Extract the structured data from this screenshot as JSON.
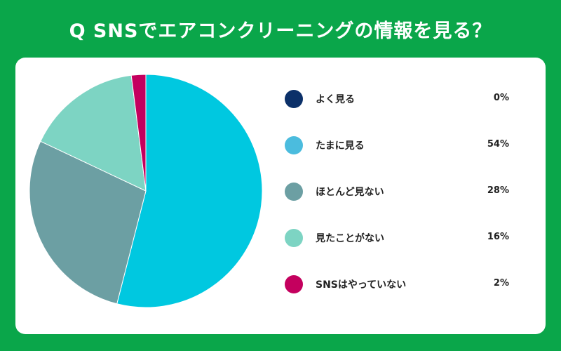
{
  "title": "Q SNSでエアコンクリーニングの情報を見る？",
  "chart_data": {
    "type": "pie",
    "categories": [
      "よく見る",
      "たまに見る",
      "ほとんど見ない",
      "見たことがない",
      "SNSはやっていない"
    ],
    "values": [
      0,
      54,
      28,
      16,
      2
    ],
    "value_labels": [
      "0%",
      "54%",
      "28%",
      "16%",
      "2%"
    ],
    "colors": [
      "#0b3069",
      "#4bbcde",
      "#6c9fa3",
      "#7dd4c3",
      "#c4005e"
    ],
    "slice_colors": [
      "#0b3069",
      "#00c8e0",
      "#6c9fa3",
      "#7dd4c3",
      "#c4005e"
    ],
    "unit": "%",
    "legend_position": "right"
  }
}
